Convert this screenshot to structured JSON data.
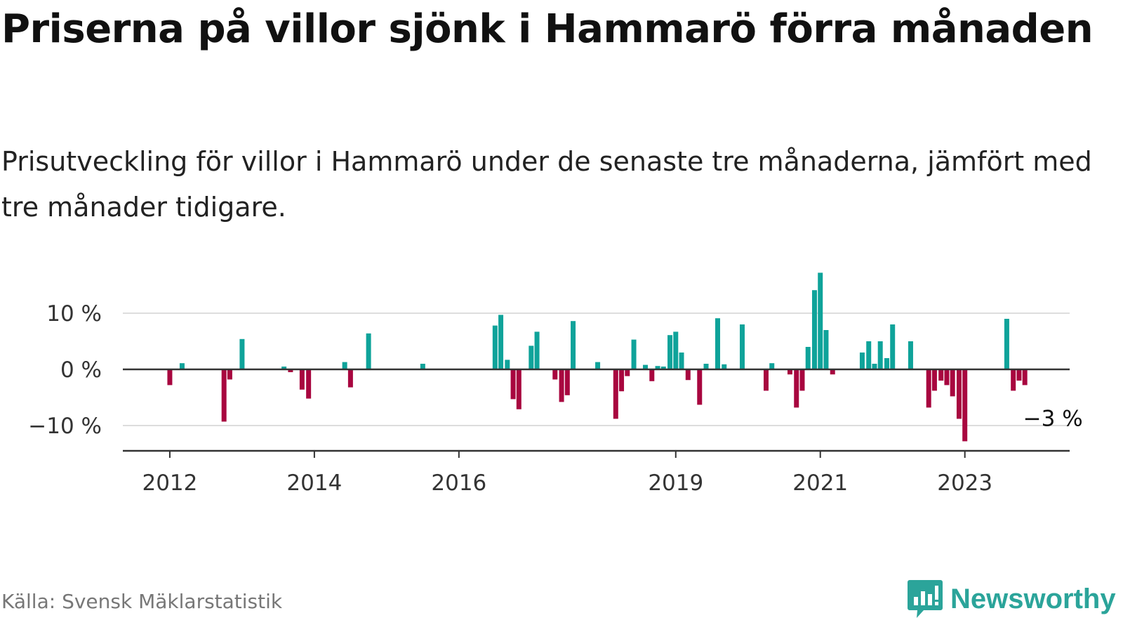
{
  "title": "Priserna på villor sjönk i Hammarö förra månaden",
  "subtitle": "Prisutveckling för villor i Hammarö under de senaste tre månaderna, jämfört med tre månader tidigare.",
  "source": "Källa: Svensk Mäklarstatistik",
  "brand": {
    "name": "Newsworthy",
    "icon": "newsworthy-logo-icon"
  },
  "colors": {
    "positive": "#0fa39a",
    "negative": "#a8063f",
    "axis": "#333333",
    "grid": "#dddddd",
    "brand": "#2ba49a"
  },
  "chart_data": {
    "type": "bar",
    "title": "",
    "xlabel": "",
    "ylabel": "",
    "unit": "%",
    "ylim": [
      -14.5,
      19.5
    ],
    "y_ticks": [
      {
        "value": 10,
        "label": "10 %"
      },
      {
        "value": 0,
        "label": "0 %"
      },
      {
        "value": -10,
        "label": "−10 %"
      }
    ],
    "x_ticks": [
      {
        "value": 2012.0,
        "label": "2012"
      },
      {
        "value": 2014.0,
        "label": "2014"
      },
      {
        "value": 2016.0,
        "label": "2016"
      },
      {
        "value": 2019.0,
        "label": "2019"
      },
      {
        "value": 2021.0,
        "label": "2021"
      },
      {
        "value": 2023.0,
        "label": "2023"
      }
    ],
    "x_range": [
      2011.35,
      2024.45
    ],
    "grid": true,
    "last_value_label": "−3 %",
    "series": [
      {
        "values": [
          {
            "x": 2012.0,
            "y": -2.8
          },
          {
            "x": 2012.17,
            "y": 1.1
          },
          {
            "x": 2012.75,
            "y": -9.3
          },
          {
            "x": 2012.83,
            "y": -1.8
          },
          {
            "x": 2013.0,
            "y": 5.4
          },
          {
            "x": 2013.58,
            "y": 0.5
          },
          {
            "x": 2013.67,
            "y": -0.5
          },
          {
            "x": 2013.83,
            "y": -3.6
          },
          {
            "x": 2013.92,
            "y": -5.2
          },
          {
            "x": 2014.42,
            "y": 1.3
          },
          {
            "x": 2014.5,
            "y": -3.2
          },
          {
            "x": 2014.75,
            "y": 6.4
          },
          {
            "x": 2015.5,
            "y": 1.0
          },
          {
            "x": 2016.5,
            "y": 7.8
          },
          {
            "x": 2016.58,
            "y": 9.7
          },
          {
            "x": 2016.67,
            "y": 1.7
          },
          {
            "x": 2016.75,
            "y": -5.3
          },
          {
            "x": 2016.83,
            "y": -7.1
          },
          {
            "x": 2017.0,
            "y": 4.2
          },
          {
            "x": 2017.08,
            "y": 6.7
          },
          {
            "x": 2017.33,
            "y": -1.8
          },
          {
            "x": 2017.42,
            "y": -5.8
          },
          {
            "x": 2017.5,
            "y": -4.6
          },
          {
            "x": 2017.58,
            "y": 8.6
          },
          {
            "x": 2017.92,
            "y": 1.3
          },
          {
            "x": 2018.17,
            "y": -8.8
          },
          {
            "x": 2018.25,
            "y": -3.9
          },
          {
            "x": 2018.33,
            "y": -1.2
          },
          {
            "x": 2018.42,
            "y": 5.3
          },
          {
            "x": 2018.58,
            "y": 0.8
          },
          {
            "x": 2018.67,
            "y": -2.1
          },
          {
            "x": 2018.75,
            "y": 0.6
          },
          {
            "x": 2018.83,
            "y": 0.5
          },
          {
            "x": 2018.92,
            "y": 6.1
          },
          {
            "x": 2019.0,
            "y": 6.7
          },
          {
            "x": 2019.08,
            "y": 3.0
          },
          {
            "x": 2019.17,
            "y": -1.9
          },
          {
            "x": 2019.33,
            "y": -6.3
          },
          {
            "x": 2019.42,
            "y": 1.0
          },
          {
            "x": 2019.58,
            "y": 9.1
          },
          {
            "x": 2019.67,
            "y": 0.9
          },
          {
            "x": 2019.92,
            "y": 8.0
          },
          {
            "x": 2020.25,
            "y": -3.8
          },
          {
            "x": 2020.33,
            "y": 1.1
          },
          {
            "x": 2020.58,
            "y": -0.9
          },
          {
            "x": 2020.67,
            "y": -6.8
          },
          {
            "x": 2020.75,
            "y": -3.8
          },
          {
            "x": 2020.83,
            "y": 4.0
          },
          {
            "x": 2020.92,
            "y": 14.1
          },
          {
            "x": 2021.0,
            "y": 17.2
          },
          {
            "x": 2021.08,
            "y": 7.0
          },
          {
            "x": 2021.17,
            "y": -0.9
          },
          {
            "x": 2021.58,
            "y": 3.0
          },
          {
            "x": 2021.67,
            "y": 5.0
          },
          {
            "x": 2021.75,
            "y": 1.0
          },
          {
            "x": 2021.83,
            "y": 5.0
          },
          {
            "x": 2021.92,
            "y": 2.0
          },
          {
            "x": 2022.0,
            "y": 8.0
          },
          {
            "x": 2022.25,
            "y": 5.0
          },
          {
            "x": 2022.5,
            "y": -6.8
          },
          {
            "x": 2022.58,
            "y": -3.8
          },
          {
            "x": 2022.67,
            "y": -2.0
          },
          {
            "x": 2022.75,
            "y": -2.8
          },
          {
            "x": 2022.83,
            "y": -4.8
          },
          {
            "x": 2022.92,
            "y": -8.8
          },
          {
            "x": 2023.0,
            "y": -12.8
          },
          {
            "x": 2023.58,
            "y": 9.0
          },
          {
            "x": 2023.67,
            "y": -3.8
          },
          {
            "x": 2023.75,
            "y": -2.0
          },
          {
            "x": 2023.83,
            "y": -2.8
          }
        ]
      }
    ]
  }
}
